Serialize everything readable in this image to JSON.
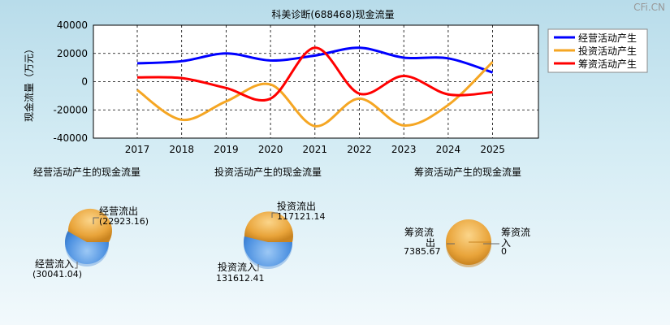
{
  "watermark": "CFi.CN",
  "chart_data": [
    {
      "type": "line",
      "title": "科美诊断(688468)现金流量",
      "ylabel": "现金流量（万元）",
      "xlabel": "",
      "x": [
        "2017",
        "2018",
        "2019",
        "2020",
        "2021",
        "2022",
        "2023",
        "2024",
        "2025"
      ],
      "ylim": [
        -40000,
        40000
      ],
      "yticks": [
        40000,
        20000,
        0,
        -20000,
        -40000
      ],
      "grid": true,
      "legend": "top-right",
      "series": [
        {
          "name": "经营活动产生",
          "color": "#0000ff",
          "values": [
            13000,
            14500,
            20000,
            15000,
            18500,
            24000,
            17000,
            16500,
            6500
          ]
        },
        {
          "name": "投资活动产生",
          "color": "#f5a623",
          "values": [
            -6000,
            -27000,
            -14000,
            -2000,
            -31500,
            -12000,
            -31000,
            -16500,
            14000
          ]
        },
        {
          "name": "筹资活动产生",
          "color": "#ff0000",
          "values": [
            3000,
            2500,
            -4500,
            -12000,
            24000,
            -8500,
            4000,
            -9000,
            -7500
          ]
        }
      ]
    },
    {
      "type": "pie",
      "title": "经营活动产生的现金流量",
      "labels": [
        "经营流出",
        "经营流入"
      ],
      "values": [
        22923.16,
        30041.04
      ],
      "value_text": [
        "(22923.16)",
        "(30041.04)"
      ]
    },
    {
      "type": "pie",
      "title": "投资活动产生的现金流量",
      "labels": [
        "投资流出",
        "投资流入"
      ],
      "values": [
        117121.14,
        131612.41
      ],
      "value_text": [
        "117121.14",
        "131612.41"
      ]
    },
    {
      "type": "pie",
      "title": "筹资活动产生的现金流量",
      "labels": [
        "筹资流出",
        "筹资流入"
      ],
      "values": [
        7385.67,
        0
      ],
      "value_text": [
        "7385.67",
        "0"
      ]
    }
  ]
}
